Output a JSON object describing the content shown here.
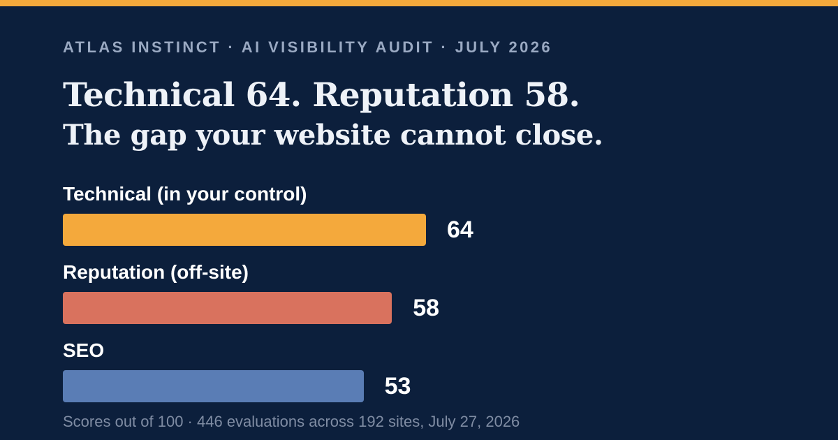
{
  "accent_color": "#f4a93c",
  "background_color": "#0c1f3c",
  "eyebrow": "ATLAS INSTINCT · AI VISIBILITY AUDIT · JULY 2026",
  "headline": {
    "line1": "Technical 64. Reputation 58.",
    "line2": "The gap your website cannot close."
  },
  "chart_data": {
    "type": "bar",
    "orientation": "horizontal",
    "categories": [
      "Technical (in your control)",
      "Reputation (off-site)",
      "SEO"
    ],
    "values": [
      64,
      58,
      53
    ],
    "colors": [
      "#f4a93c",
      "#d9725e",
      "#5a7db5"
    ],
    "xlim": [
      0,
      100
    ],
    "grid": false,
    "legend": "none"
  },
  "footnote": "Scores out of 100 · 446 evaluations across 192 sites, July 27, 2026"
}
